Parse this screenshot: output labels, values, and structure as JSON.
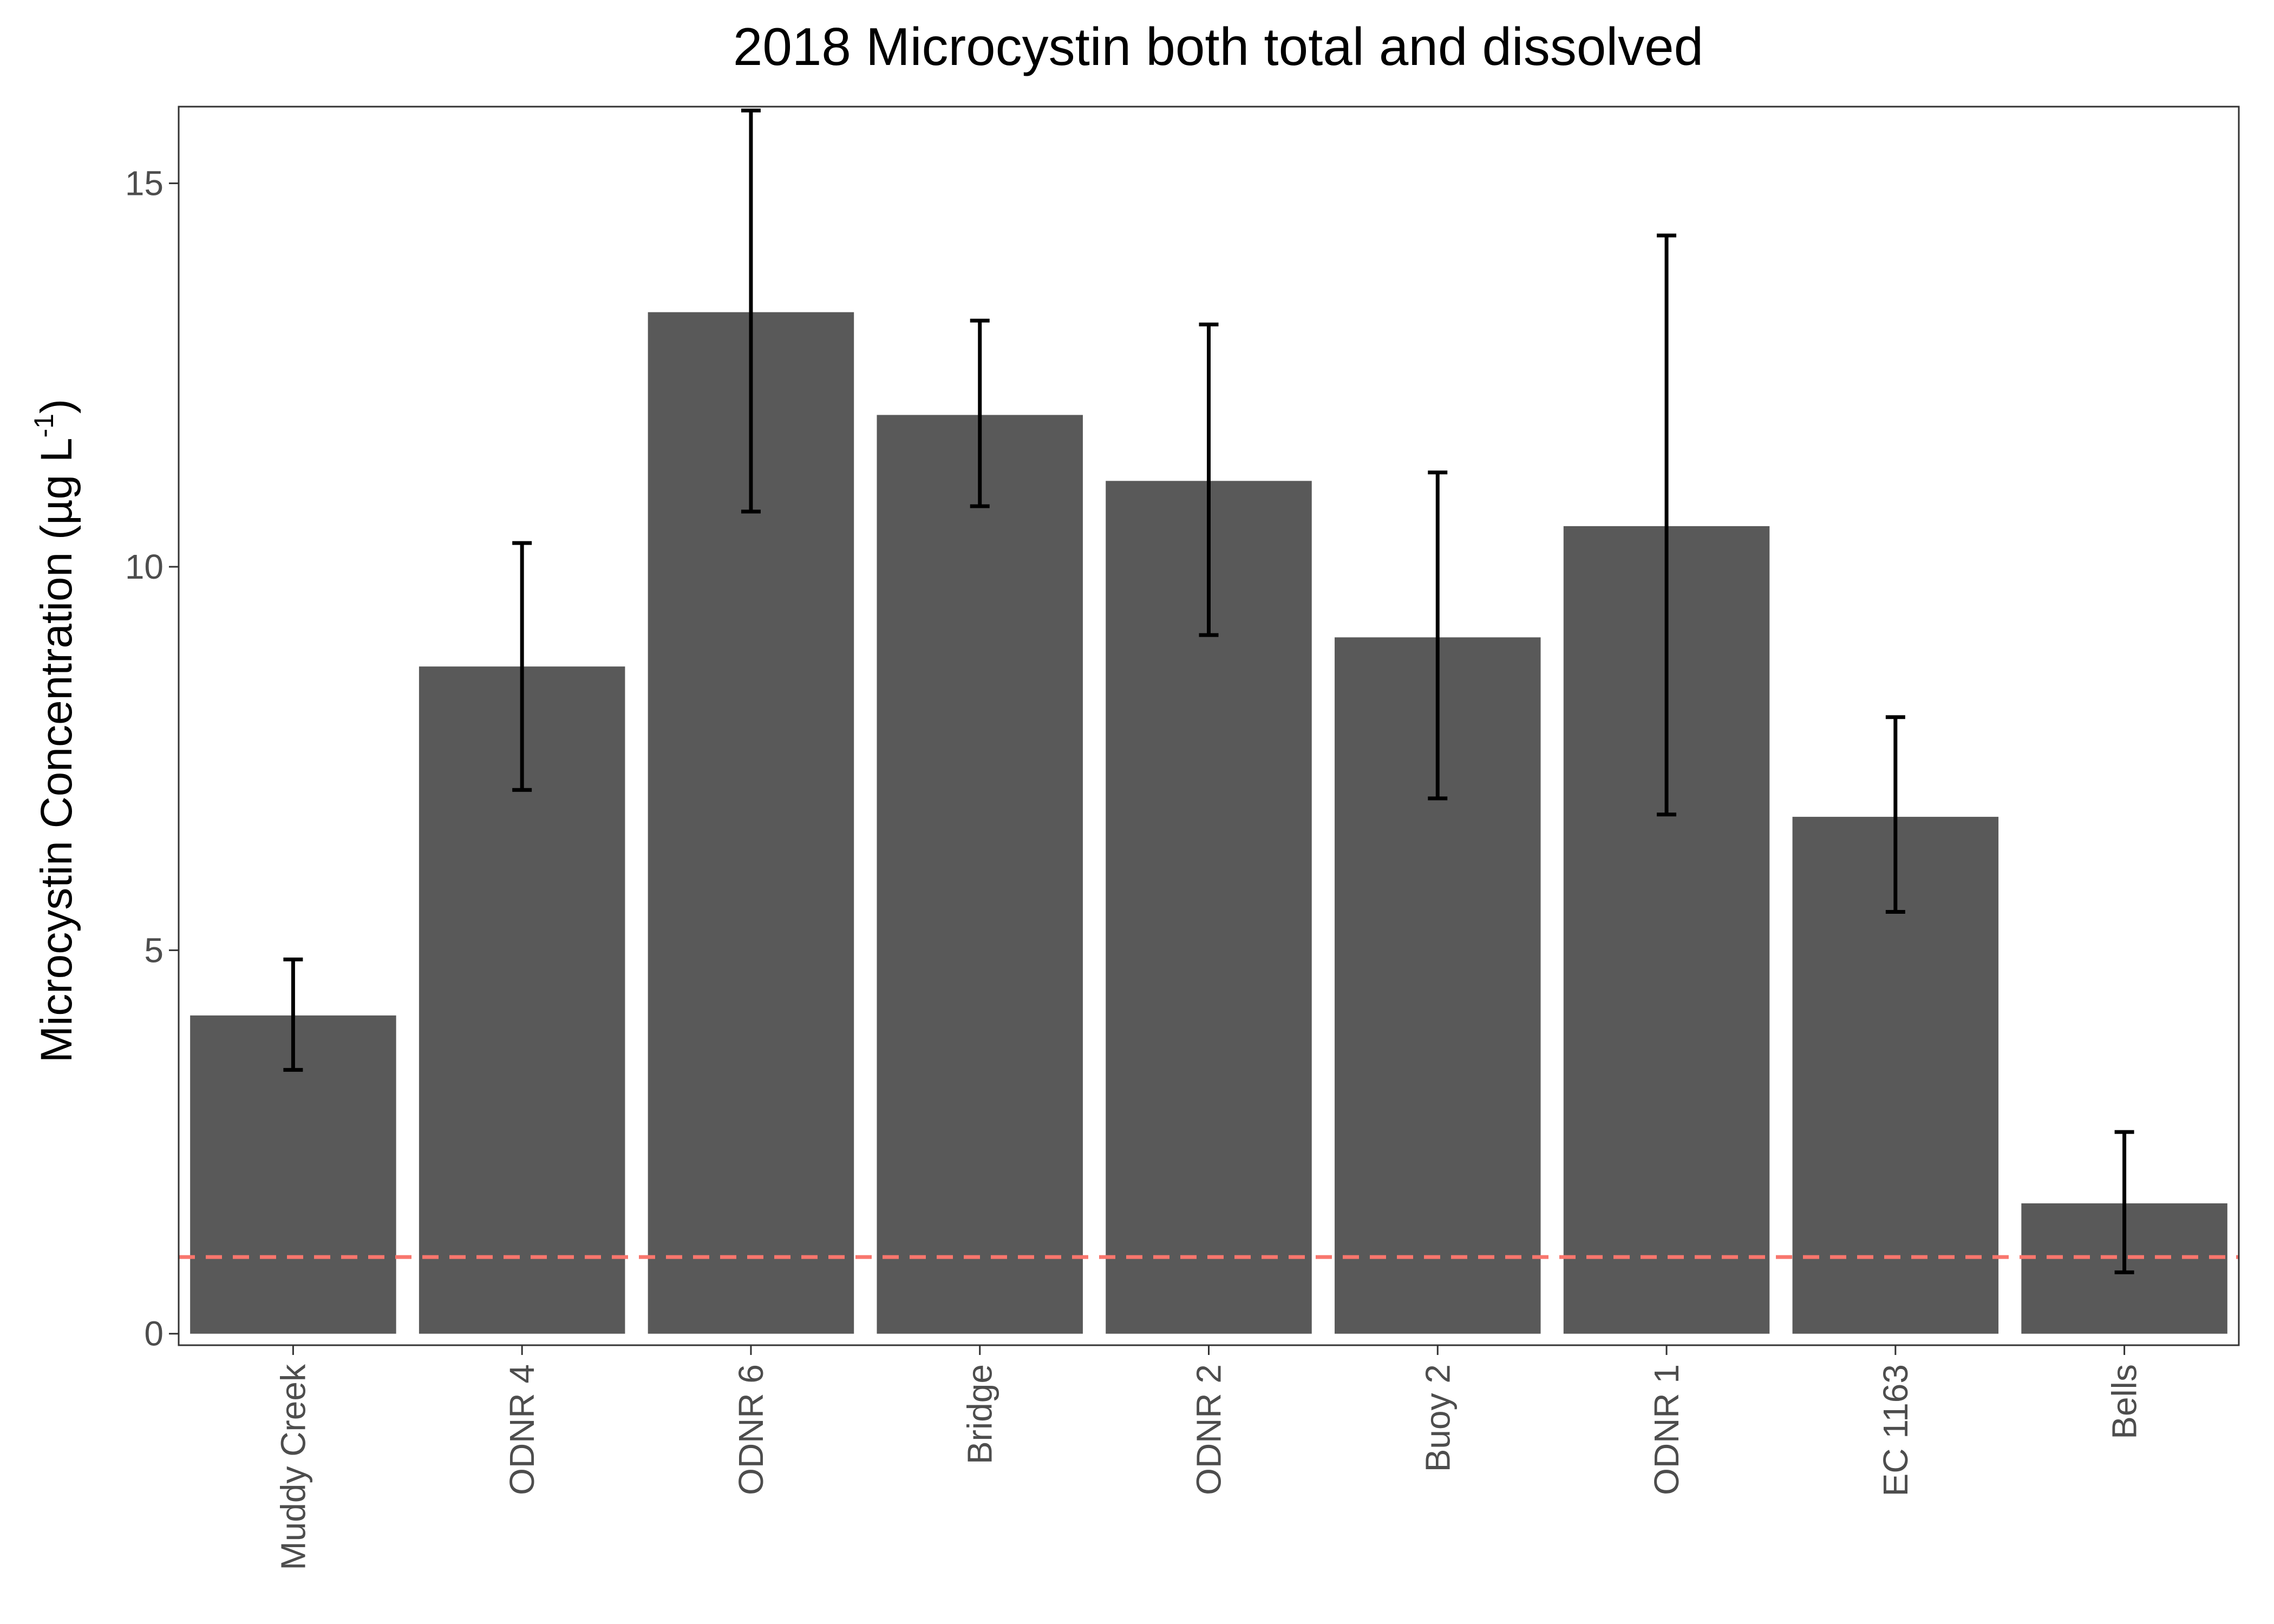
{
  "chart_data": {
    "type": "bar",
    "title": "2018 Microcystin both total and dissolved",
    "xlabel": "",
    "ylabel": {
      "main": "Microcystin Concentration (µg L",
      "superscript": "-1",
      "close": ")"
    },
    "categories": [
      "Muddy Creek",
      "ODNR 4",
      "ODNR 6",
      "Bridge",
      "ODNR 2",
      "Buoy 2",
      "ODNR 1",
      "EC 1163",
      "Bells"
    ],
    "values": [
      4.15,
      8.7,
      13.32,
      11.98,
      11.12,
      9.08,
      10.53,
      6.74,
      1.7
    ],
    "error_low": [
      3.44,
      7.09,
      10.72,
      10.79,
      9.11,
      6.98,
      6.77,
      5.5,
      0.8
    ],
    "error_high": [
      4.88,
      10.31,
      15.95,
      13.21,
      13.16,
      11.23,
      14.32,
      8.04,
      2.63
    ],
    "reference_line": {
      "y": 1.0,
      "style": "dashed",
      "color": "#f8766d"
    },
    "ylim": [
      -0.15,
      16.0
    ],
    "yticks": [
      0,
      5,
      10,
      15
    ],
    "grid": false,
    "bar_color": "#595959",
    "errorbar_color": "#000000"
  }
}
